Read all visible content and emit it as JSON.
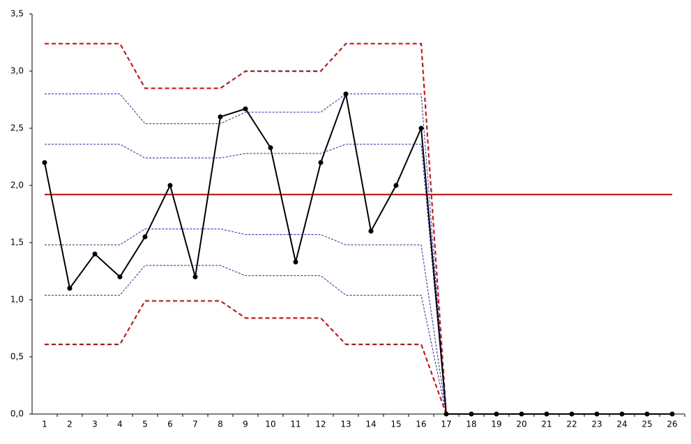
{
  "chart_data": {
    "type": "line",
    "categories": [
      "1",
      "2",
      "3",
      "4",
      "5",
      "6",
      "7",
      "8",
      "9",
      "10",
      "11",
      "12",
      "13",
      "14",
      "15",
      "16",
      "17",
      "18",
      "19",
      "20",
      "21",
      "22",
      "23",
      "24",
      "25",
      "26"
    ],
    "ylim": [
      0,
      3.5
    ],
    "yticks": [
      {
        "value": 0,
        "label": "0,0"
      },
      {
        "value": 0.5,
        "label": "0,5"
      },
      {
        "value": 1,
        "label": "1,0"
      },
      {
        "value": 1.5,
        "label": "1,5"
      },
      {
        "value": 2,
        "label": "2,0"
      },
      {
        "value": 2.5,
        "label": "2,5"
      },
      {
        "value": 3,
        "label": "3,0"
      },
      {
        "value": 3.5,
        "label": "3,5"
      }
    ],
    "grid": false,
    "series": [
      {
        "color": "#e00000",
        "dash": "6,4",
        "width": 2,
        "values": [
          3.24,
          3.24,
          3.24,
          3.24,
          2.85,
          2.85,
          2.85,
          2.85,
          3.0,
          3.0,
          3.0,
          3.0,
          3.24,
          3.24,
          3.24,
          3.24,
          0,
          null,
          null,
          null,
          null,
          null,
          null,
          null,
          null,
          null
        ]
      },
      {
        "color": "#2020e0",
        "dash": "3,2",
        "width": 1,
        "values": [
          2.8,
          2.8,
          2.8,
          2.8,
          2.54,
          2.54,
          2.54,
          2.54,
          2.64,
          2.64,
          2.64,
          2.64,
          2.8,
          2.8,
          2.8,
          2.8,
          0,
          null,
          null,
          null,
          null,
          null,
          null,
          null,
          null,
          null
        ]
      },
      {
        "color": "#2020e0",
        "dash": "3,2",
        "width": 1,
        "values": [
          2.36,
          2.36,
          2.36,
          2.36,
          2.24,
          2.24,
          2.24,
          2.24,
          2.28,
          2.28,
          2.28,
          2.28,
          2.36,
          2.36,
          2.36,
          2.36,
          0,
          null,
          null,
          null,
          null,
          null,
          null,
          null,
          null,
          null
        ]
      },
      {
        "color": "#e00000",
        "dash": "",
        "width": 2,
        "values": [
          1.92,
          1.92,
          1.92,
          1.92,
          1.92,
          1.92,
          1.92,
          1.92,
          1.92,
          1.92,
          1.92,
          1.92,
          1.92,
          1.92,
          1.92,
          1.92,
          1.92,
          1.92,
          1.92,
          1.92,
          1.92,
          1.92,
          1.92,
          1.92,
          1.92,
          1.92
        ]
      },
      {
        "color": "#2020e0",
        "dash": "3,2",
        "width": 1,
        "values": [
          1.48,
          1.48,
          1.48,
          1.48,
          1.62,
          1.62,
          1.62,
          1.62,
          1.57,
          1.57,
          1.57,
          1.57,
          1.48,
          1.48,
          1.48,
          1.48,
          0,
          null,
          null,
          null,
          null,
          null,
          null,
          null,
          null,
          null
        ]
      },
      {
        "color": "#2020e0",
        "dash": "3,2",
        "width": 1,
        "values": [
          1.04,
          1.04,
          1.04,
          1.04,
          1.3,
          1.3,
          1.3,
          1.3,
          1.21,
          1.21,
          1.21,
          1.21,
          1.04,
          1.04,
          1.04,
          1.04,
          0,
          null,
          null,
          null,
          null,
          null,
          null,
          null,
          null,
          null
        ]
      },
      {
        "color": "#e00000",
        "dash": "6,4",
        "width": 2,
        "values": [
          0.61,
          0.61,
          0.61,
          0.61,
          0.99,
          0.99,
          0.99,
          0.99,
          0.84,
          0.84,
          0.84,
          0.84,
          0.61,
          0.61,
          0.61,
          0.61,
          0,
          null,
          null,
          null,
          null,
          null,
          null,
          null,
          null,
          null
        ]
      },
      {
        "color": "#000000",
        "dash": "",
        "width": 2,
        "markers": true,
        "values": [
          2.2,
          1.1,
          1.4,
          1.2,
          1.55,
          2.0,
          1.2,
          2.6,
          2.67,
          2.33,
          1.33,
          2.2,
          2.8,
          1.6,
          2.0,
          2.5,
          0,
          0,
          0,
          0,
          0,
          0,
          0,
          0,
          0,
          0
        ]
      }
    ]
  }
}
